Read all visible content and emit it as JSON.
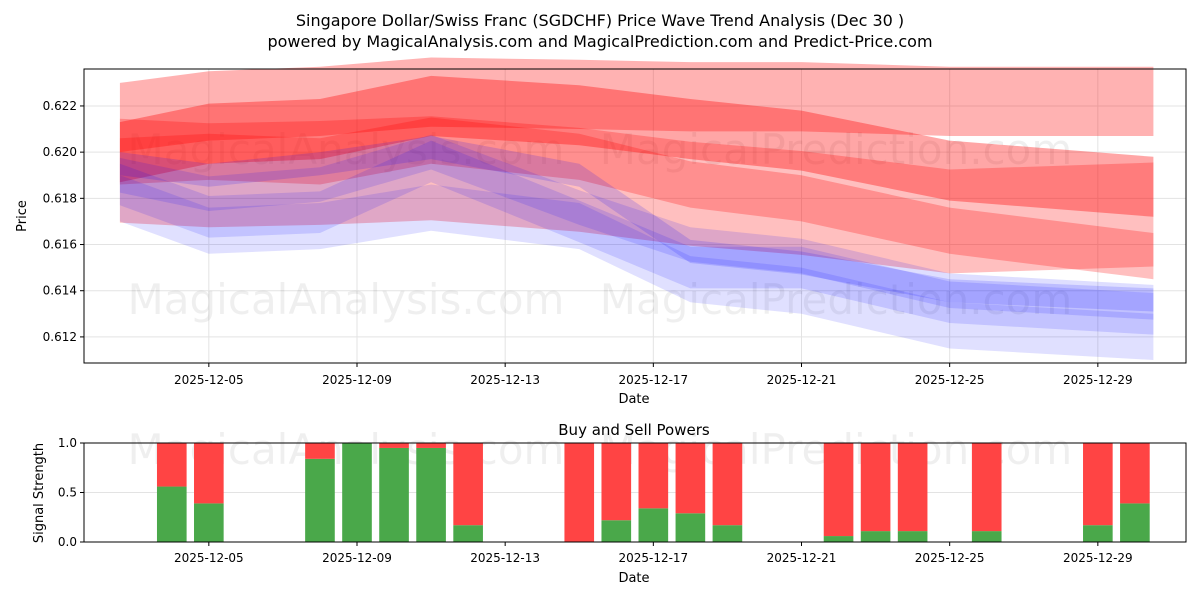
{
  "chart_data": [
    {
      "type": "area",
      "title": "Singapore Dollar/Swiss Franc (SGDCHF) Price Wave Trend Analysis (Dec 30 )",
      "subtitle": "powered by MagicalAnalysis.com and MagicalPrediction.com and Predict-Price.com",
      "xlabel": "Date",
      "ylabel": "Price",
      "xlim": [
        "2025-12-01.6",
        "2025-12-31.4"
      ],
      "ylim": [
        0.61087,
        0.6236
      ],
      "grid": true,
      "xticks": [
        "2025-12-05",
        "2025-12-09",
        "2025-12-13",
        "2025-12-17",
        "2025-12-21",
        "2025-12-25",
        "2025-12-29"
      ],
      "yticks": [
        "0.612",
        "0.614",
        "0.616",
        "0.618",
        "0.620",
        "0.622"
      ],
      "band_days": [
        2.6,
        5,
        8,
        11,
        15,
        18,
        21,
        25,
        30.5
      ],
      "bands": [
        {
          "color": "#ff0000",
          "alpha": 0.3,
          "thickness": 0.003,
          "center": [
            0.6215,
            0.622,
            0.6222,
            0.6226,
            0.6225,
            0.6224,
            0.6224,
            0.6222,
            0.6222
          ]
        },
        {
          "color": "#ff0000",
          "alpha": 0.25,
          "thickness": 0.0045,
          "center": [
            0.6192,
            0.619,
            0.6191,
            0.6193,
            0.6188,
            0.6182,
            0.6178,
            0.617,
            0.6173
          ]
        },
        {
          "color": "#ff0000",
          "alpha": 0.35,
          "thickness": 0.0026,
          "center": [
            0.62,
            0.6208,
            0.621,
            0.622,
            0.6216,
            0.621,
            0.6205,
            0.6192,
            0.6185
          ]
        },
        {
          "color": "#ff0000",
          "alpha": 0.25,
          "thickness": 0.002,
          "center": [
            0.6196,
            0.6198,
            0.6196,
            0.6205,
            0.6198,
            0.6186,
            0.618,
            0.6166,
            0.6155
          ]
        },
        {
          "color": "#0000ff",
          "alpha": 0.13,
          "thickness": 0.0015,
          "center": [
            0.619,
            0.6182,
            0.6186,
            0.62,
            0.6176,
            0.616,
            0.6155,
            0.614,
            0.6135
          ]
        },
        {
          "color": "#0000ff",
          "alpha": 0.13,
          "thickness": 0.0018,
          "center": [
            0.6186,
            0.6172,
            0.6174,
            0.6196,
            0.617,
            0.615,
            0.615,
            0.6135,
            0.613
          ]
        },
        {
          "color": "#0000ff",
          "alpha": 0.15,
          "thickness": 0.001,
          "center": [
            0.6195,
            0.619,
            0.6195,
            0.6202,
            0.619,
            0.6157,
            0.6152,
            0.614,
            0.6136
          ]
        },
        {
          "color": "#0000ff",
          "alpha": 0.12,
          "thickness": 0.002,
          "center": [
            0.618,
            0.6166,
            0.6168,
            0.6176,
            0.6168,
            0.6145,
            0.614,
            0.6125,
            0.612
          ]
        }
      ],
      "watermarks": [
        "MagicalAnalysis.com",
        "MagicalPrediction.com",
        "MagicalAnalysis.com",
        "MagicalPrediction.com"
      ]
    },
    {
      "type": "bar",
      "title": "Buy and Sell Powers",
      "xlabel": "Date",
      "ylabel": "Signal Strength",
      "ylim": [
        0,
        1
      ],
      "yticks": [
        "0.0",
        "0.5",
        "1.0"
      ],
      "xticks": [
        "2025-12-05",
        "2025-12-09",
        "2025-12-13",
        "2025-12-17",
        "2025-12-21",
        "2025-12-25",
        "2025-12-29"
      ],
      "categories": [
        "2025-12-04",
        "2025-12-05",
        "2025-12-08",
        "2025-12-09",
        "2025-12-10",
        "2025-12-11",
        "2025-12-12",
        "2025-12-15",
        "2025-12-16",
        "2025-12-17",
        "2025-12-18",
        "2025-12-19",
        "2025-12-22",
        "2025-12-23",
        "2025-12-24",
        "2025-12-26",
        "2025-12-29",
        "2025-12-30"
      ],
      "series": [
        {
          "name": "Buy",
          "color": "#4aa84a",
          "values": [
            0.56,
            0.39,
            0.84,
            1.0,
            0.95,
            0.95,
            0.17,
            0.0,
            0.22,
            0.34,
            0.29,
            0.17,
            0.06,
            0.11,
            0.11,
            0.11,
            0.17,
            0.39
          ]
        },
        {
          "name": "Sell",
          "color": "#ff4444",
          "values": [
            0.44,
            0.61,
            0.16,
            0.0,
            0.05,
            0.05,
            0.83,
            1.0,
            0.78,
            0.66,
            0.71,
            0.83,
            0.94,
            0.89,
            0.89,
            0.89,
            0.83,
            0.61
          ]
        }
      ],
      "watermarks": [
        "MagicalAnalysis.com",
        "MagicalPrediction.com"
      ]
    }
  ]
}
